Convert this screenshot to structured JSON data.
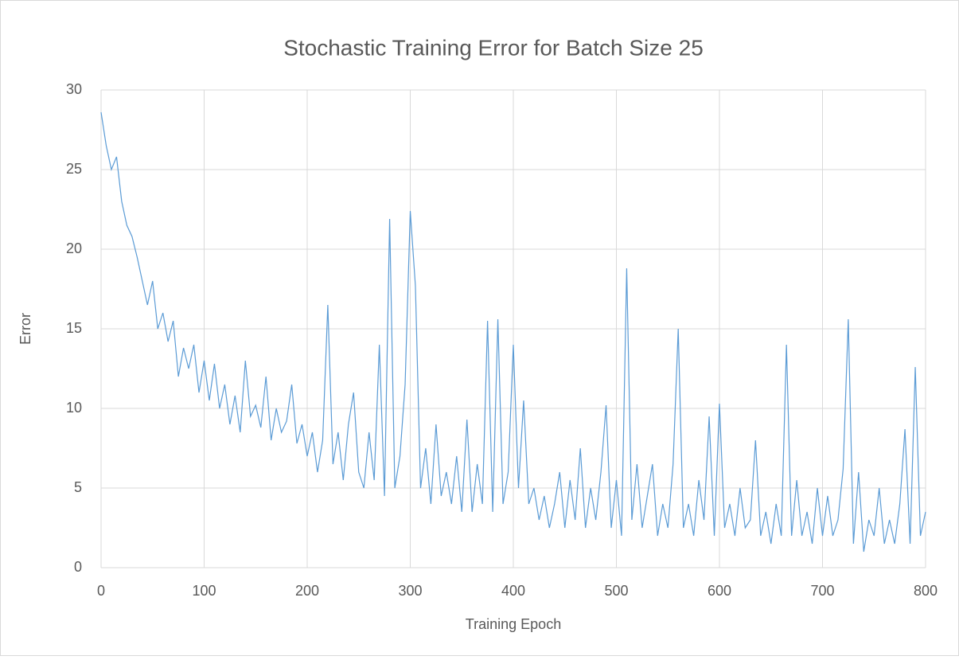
{
  "chart_data": {
    "type": "line",
    "title": "Stochastic Training Error for Batch Size 25",
    "xlabel": "Training Epoch",
    "ylabel": "Error",
    "xlim": [
      0,
      800
    ],
    "xticks": [
      0,
      100,
      200,
      300,
      400,
      500,
      600,
      700,
      800
    ],
    "ylim": [
      0,
      30
    ],
    "yticks": [
      0,
      5,
      10,
      15,
      20,
      25,
      30
    ],
    "grid": true,
    "x": [
      0,
      5,
      10,
      15,
      20,
      25,
      30,
      35,
      40,
      45,
      50,
      55,
      60,
      65,
      70,
      75,
      80,
      85,
      90,
      95,
      100,
      105,
      110,
      115,
      120,
      125,
      130,
      135,
      140,
      145,
      150,
      155,
      160,
      165,
      170,
      175,
      180,
      185,
      190,
      195,
      200,
      205,
      210,
      215,
      220,
      225,
      230,
      235,
      240,
      245,
      250,
      255,
      260,
      265,
      270,
      275,
      280,
      285,
      290,
      295,
      300,
      305,
      310,
      315,
      320,
      325,
      330,
      335,
      340,
      345,
      350,
      355,
      360,
      365,
      370,
      375,
      380,
      385,
      390,
      395,
      400,
      405,
      410,
      415,
      420,
      425,
      430,
      435,
      440,
      445,
      450,
      455,
      460,
      465,
      470,
      475,
      480,
      485,
      490,
      495,
      500,
      505,
      510,
      515,
      520,
      525,
      530,
      535,
      540,
      545,
      550,
      555,
      560,
      565,
      570,
      575,
      580,
      585,
      590,
      595,
      600,
      605,
      610,
      615,
      620,
      625,
      630,
      635,
      640,
      645,
      650,
      655,
      660,
      665,
      670,
      675,
      680,
      685,
      690,
      695,
      700,
      705,
      710,
      715,
      720,
      725,
      730,
      735,
      740,
      745,
      750,
      755,
      760,
      765,
      770,
      775,
      780,
      785,
      790,
      795,
      800
    ],
    "series": [
      {
        "color": "#5b9bd5",
        "values": [
          28.6,
          26.5,
          25,
          25.8,
          23,
          21.5,
          20.8,
          19.5,
          18,
          16.5,
          18,
          15,
          16,
          14.2,
          15.5,
          12,
          13.8,
          12.5,
          14,
          11,
          13,
          10.5,
          12.8,
          10,
          11.5,
          9,
          10.8,
          8.5,
          13,
          9.5,
          10.2,
          8.8,
          12,
          8,
          10,
          8.5,
          9.2,
          11.5,
          7.8,
          9,
          7,
          8.5,
          6,
          8,
          16.5,
          6.5,
          8.5,
          5.5,
          9,
          11,
          6,
          5,
          8.5,
          5.5,
          14,
          4.5,
          21.9,
          5,
          7,
          11.5,
          22.4,
          17.7,
          5,
          7.5,
          4,
          9,
          4.5,
          6,
          4,
          7,
          3.5,
          9.3,
          3.5,
          6.5,
          4,
          15.5,
          3.5,
          15.6,
          4,
          6,
          14,
          5,
          10.5,
          4,
          5,
          3,
          4.5,
          2.5,
          4,
          6,
          2.5,
          5.5,
          3,
          7.5,
          2.5,
          5,
          3,
          6,
          10.2,
          2.5,
          5.5,
          2,
          18.8,
          3,
          6.5,
          2.5,
          4.5,
          6.5,
          2,
          4,
          2.5,
          6.5,
          15,
          2.5,
          4,
          2,
          5.5,
          3,
          9.5,
          2,
          10.3,
          2.5,
          4,
          2,
          5,
          2.5,
          3,
          8,
          2,
          3.5,
          1.5,
          4,
          2,
          14,
          2,
          5.5,
          2,
          3.5,
          1.5,
          5,
          2,
          4.5,
          2,
          3,
          6.2,
          15.6,
          1.5,
          6,
          1,
          3,
          2,
          5,
          1.5,
          3,
          1.5,
          4,
          8.7,
          1.5,
          12.6,
          2,
          3.5
        ]
      }
    ]
  }
}
